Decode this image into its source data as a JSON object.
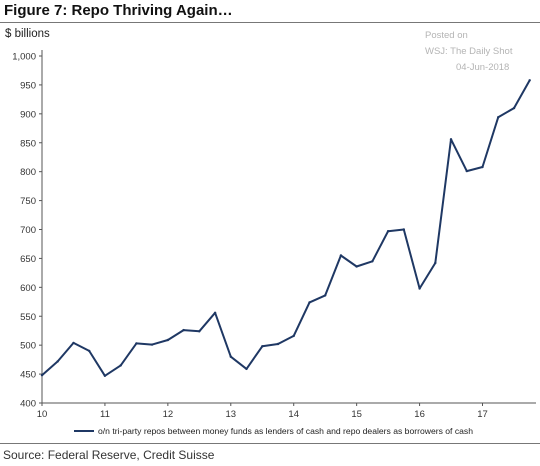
{
  "header": {
    "title": "Figure 7:  Repo Thriving Again…",
    "unit_label": "$ billions"
  },
  "watermark": {
    "line1": "Posted on",
    "line2": "WSJ: The Daily Shot",
    "line3": "04-Jun-2018"
  },
  "footer": {
    "source": "Source: Federal Reserve, Credit Suisse"
  },
  "colors": {
    "series": "#1f3864",
    "axis": "#555555"
  },
  "chart_data": {
    "type": "line",
    "title": "Figure 7:  Repo Thriving Again…",
    "ylabel": "$ billions",
    "xlabel": "",
    "ylim": [
      400,
      1000
    ],
    "yticks": [
      400,
      450,
      500,
      550,
      600,
      650,
      700,
      750,
      800,
      850,
      900,
      950,
      "1,000"
    ],
    "xlim": [
      10,
      17.85
    ],
    "xticks": [
      "10",
      "11",
      "12",
      "13",
      "14",
      "15",
      "16",
      "17"
    ],
    "grid": false,
    "legend_position": "bottom",
    "series": [
      {
        "name": "o/n tri-party repos between money funds as lenders of cash and repo dealers as borrowers of cash",
        "x": [
          10.0,
          10.25,
          10.5,
          10.75,
          11.0,
          11.25,
          11.5,
          11.75,
          12.0,
          12.25,
          12.5,
          12.75,
          13.0,
          13.25,
          13.5,
          13.75,
          14.0,
          14.25,
          14.5,
          14.75,
          15.0,
          15.25,
          15.5,
          15.75,
          16.0,
          16.25,
          16.5,
          16.75,
          17.0,
          17.25,
          17.5,
          17.75
        ],
        "y": [
          448,
          472,
          504,
          490,
          447,
          465,
          503,
          501,
          509,
          526,
          524,
          556,
          480,
          459,
          498,
          502,
          516,
          574,
          586,
          655,
          636,
          645,
          697,
          700,
          598,
          642,
          856,
          801,
          808,
          894,
          910,
          958
        ]
      }
    ]
  }
}
